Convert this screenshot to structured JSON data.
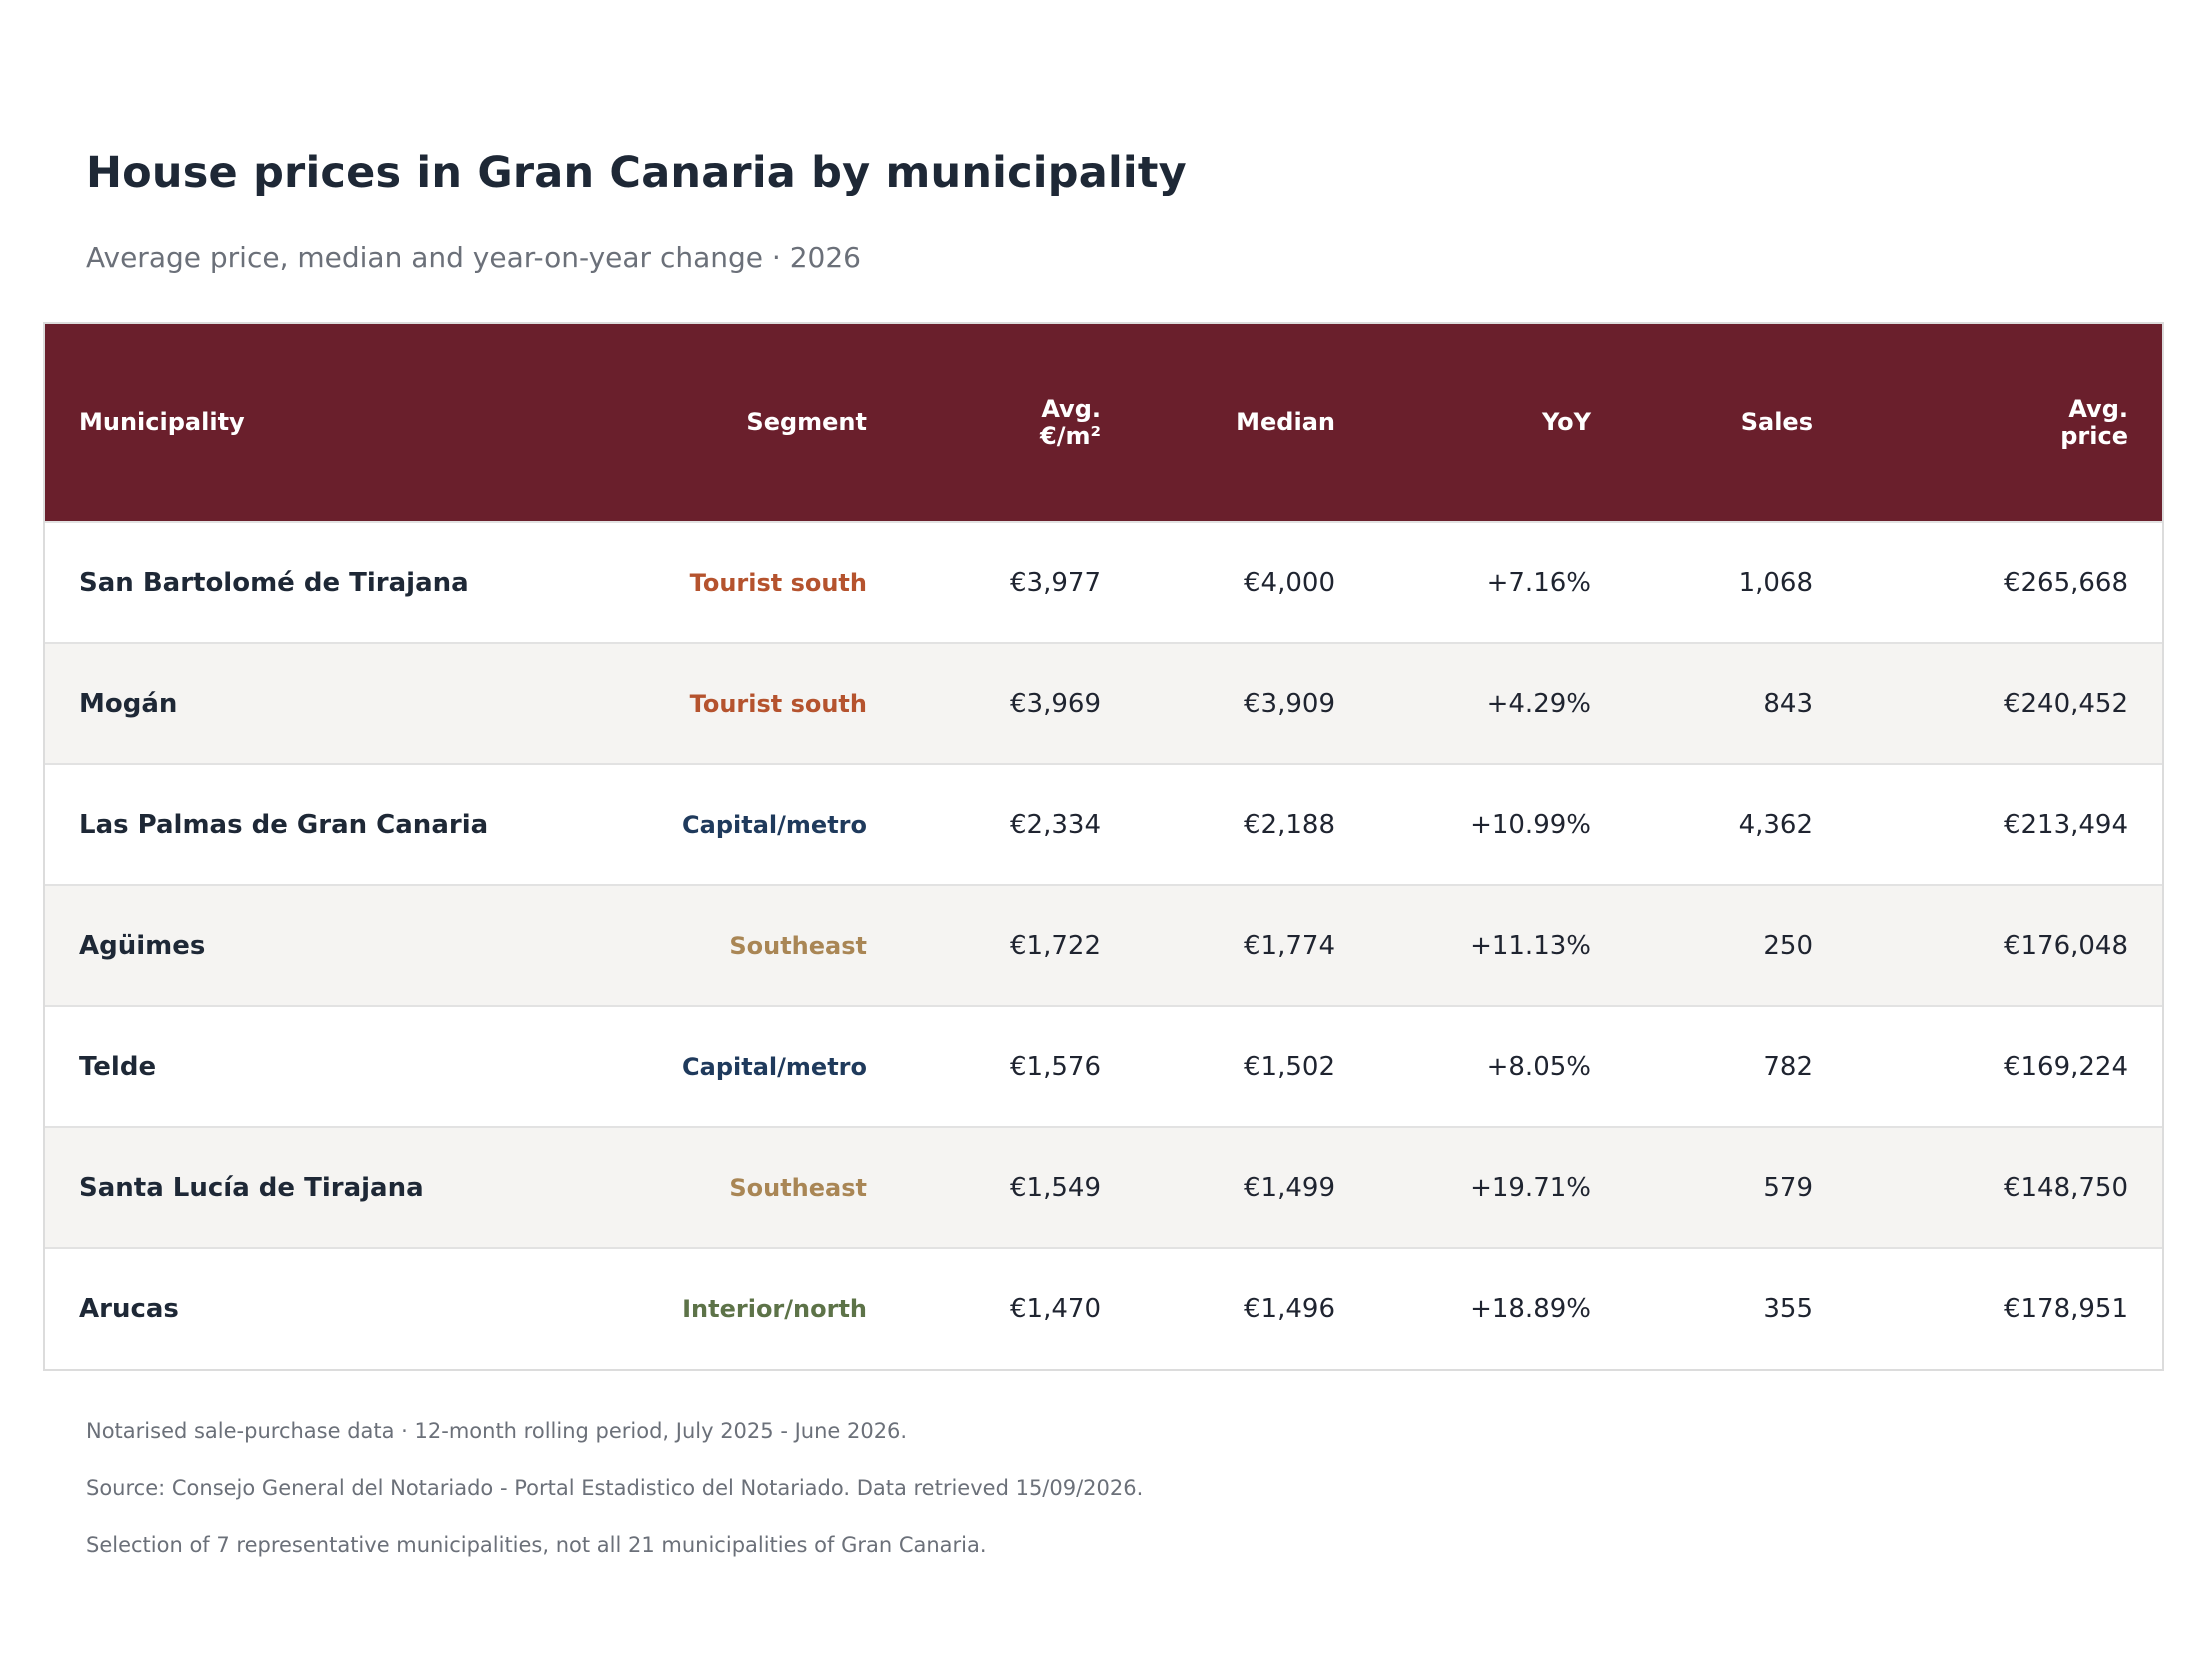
{
  "chart_data": {
    "type": "table",
    "title": "House prices in Gran Canaria by municipality",
    "subtitle": "Average price, median and year-on-year change · 2026",
    "columns": [
      {
        "key": "municipality",
        "label": "Municipality"
      },
      {
        "key": "segment",
        "label": "Segment"
      },
      {
        "key": "avg_m2",
        "label": "Avg. €/m²"
      },
      {
        "key": "median",
        "label": "Median"
      },
      {
        "key": "yoy",
        "label": "YoY"
      },
      {
        "key": "sales",
        "label": "Sales"
      },
      {
        "key": "avg_price",
        "label": "Avg. price"
      }
    ],
    "segment_colors": {
      "Tourist south": "#b5532e",
      "Capital/metro": "#1f3a5c",
      "Southeast": "#a98655",
      "Interior/north": "#5d7348"
    },
    "header_color": "#6a1f2c",
    "rows": [
      {
        "municipality": "San Bartolomé de Tirajana",
        "segment": "Tourist south",
        "avg_m2": "€3,977",
        "median": "€4,000",
        "yoy": "+7.16%",
        "sales": "1,068",
        "avg_price": "€265,668"
      },
      {
        "municipality": "Mogán",
        "segment": "Tourist south",
        "avg_m2": "€3,969",
        "median": "€3,909",
        "yoy": "+4.29%",
        "sales": "843",
        "avg_price": "€240,452"
      },
      {
        "municipality": "Las Palmas de Gran Canaria",
        "segment": "Capital/metro",
        "avg_m2": "€2,334",
        "median": "€2,188",
        "yoy": "+10.99%",
        "sales": "4,362",
        "avg_price": "€213,494"
      },
      {
        "municipality": "Agüimes",
        "segment": "Southeast",
        "avg_m2": "€1,722",
        "median": "€1,774",
        "yoy": "+11.13%",
        "sales": "250",
        "avg_price": "€176,048"
      },
      {
        "municipality": "Telde",
        "segment": "Capital/metro",
        "avg_m2": "€1,576",
        "median": "€1,502",
        "yoy": "+8.05%",
        "sales": "782",
        "avg_price": "€169,224"
      },
      {
        "municipality": "Santa Lucía de Tirajana",
        "segment": "Southeast",
        "avg_m2": "€1,549",
        "median": "€1,499",
        "yoy": "+19.71%",
        "sales": "579",
        "avg_price": "€148,750"
      },
      {
        "municipality": "Arucas",
        "segment": "Interior/north",
        "avg_m2": "€1,470",
        "median": "€1,496",
        "yoy": "+18.89%",
        "sales": "355",
        "avg_price": "€178,951"
      }
    ],
    "notes": [
      "Notarised sale-purchase data · 12-month rolling period, July 2025 - June 2026.",
      "Source: Consejo General del Notariado - Portal Estadistico del Notariado. Data retrieved 15/09/2026.",
      "Selection of 7 representative municipalities, not all 21 municipalities of Gran Canaria."
    ]
  }
}
